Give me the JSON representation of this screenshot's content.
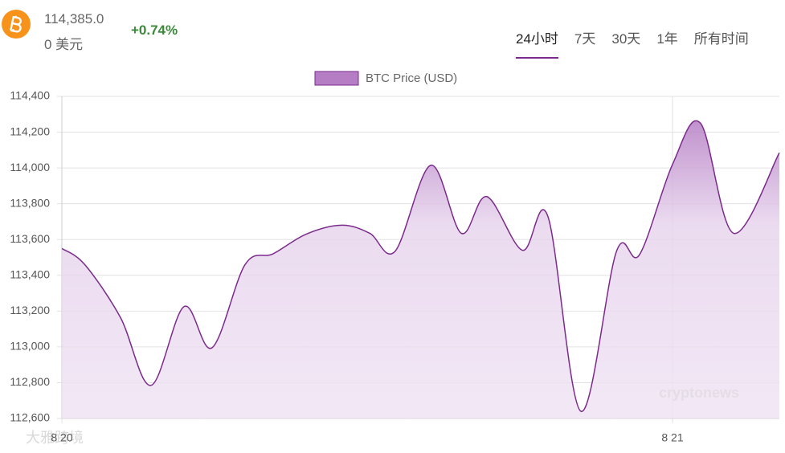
{
  "header": {
    "price": "114,385.0",
    "currency": "0 美元",
    "change": "+0.74%"
  },
  "tabs": [
    "24小时",
    "7天",
    "30天",
    "1年",
    "所有时间"
  ],
  "active_tab": 0,
  "watermarks": [
    "cryptonews",
    "大雅跨境"
  ],
  "chart_data": {
    "type": "line",
    "x": [
      0,
      0.9,
      2.3,
      3.5,
      4.8,
      5.9,
      7.2,
      8.3,
      9.6,
      11.0,
      12.1,
      13.1,
      14.5,
      15.7,
      16.7,
      18.1,
      19.1,
      20.4,
      21.8,
      22.7,
      24.0,
      25.1,
      26.4,
      28.2
    ],
    "series": [
      {
        "name": "BTC Price (USD)",
        "color": "#7b2a8c",
        "values": [
          113550,
          113460,
          113165,
          112785,
          113225,
          112995,
          113460,
          113520,
          113630,
          113680,
          113635,
          113535,
          114015,
          113635,
          113840,
          113540,
          113730,
          112640,
          113535,
          113515,
          114020,
          114250,
          113635,
          114085
        ]
      }
    ],
    "xlim": [
      0,
      28.2
    ],
    "xticks": [
      {
        "value": 0,
        "label": "8 20"
      },
      {
        "value": 24,
        "label": "8 21"
      }
    ],
    "ylim": [
      112600,
      114400
    ],
    "yticks": [
      {
        "value": 112600,
        "label": "112,600"
      },
      {
        "value": 112800,
        "label": "112,800"
      },
      {
        "value": 113000,
        "label": "113,000"
      },
      {
        "value": 113200,
        "label": "113,200"
      },
      {
        "value": 113400,
        "label": "113,400"
      },
      {
        "value": 113600,
        "label": "113,600"
      },
      {
        "value": 113800,
        "label": "113,800"
      },
      {
        "value": 114000,
        "label": "114,000"
      },
      {
        "value": 114200,
        "label": "114,200"
      },
      {
        "value": 114400,
        "label": "114,400"
      }
    ],
    "grid": true
  }
}
